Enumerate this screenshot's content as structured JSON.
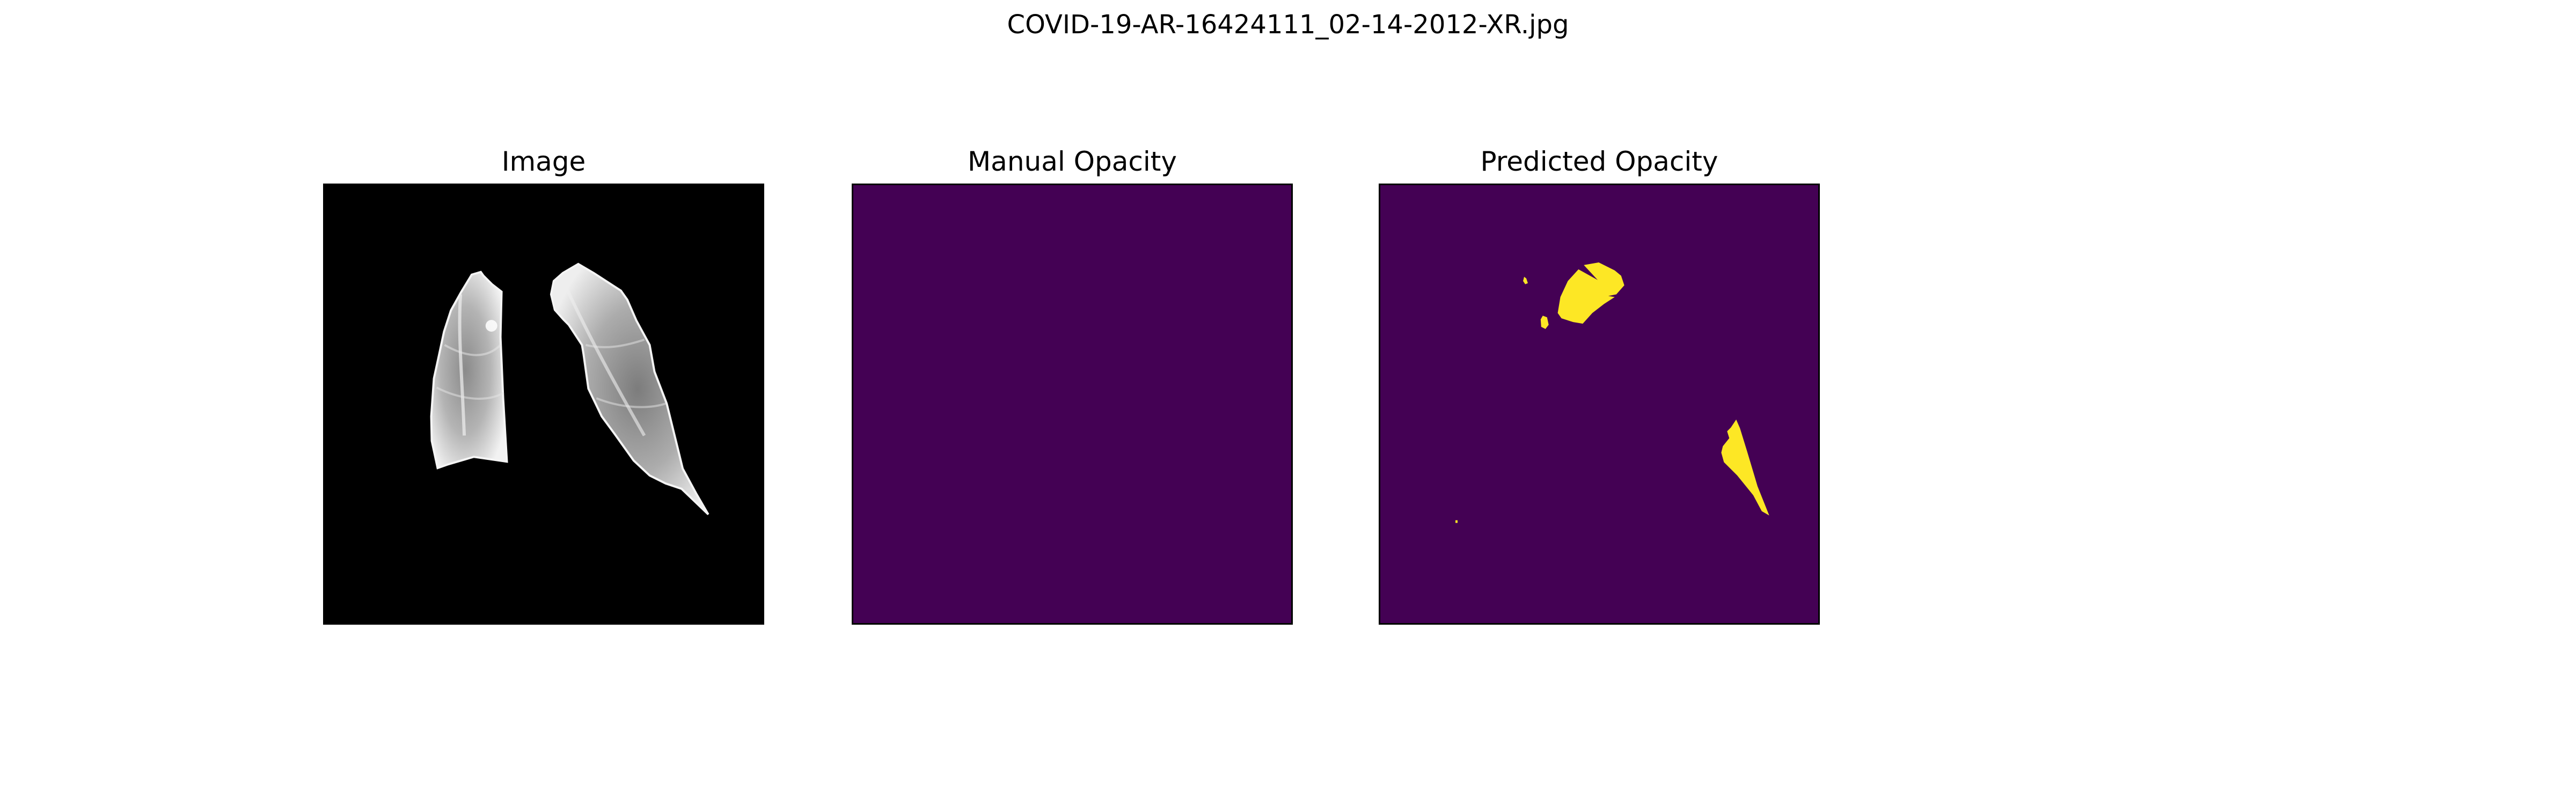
{
  "figure": {
    "suptitle": "COVID-19-AR-16424111_02-14-2012-XR.jpg"
  },
  "panels": [
    {
      "title": "Image",
      "content": "chest x-ray (lungs on black background)",
      "colors": {
        "background": "#000000",
        "tissue": "#d9d9d9"
      }
    },
    {
      "title": "Manual Opacity",
      "content": "empty mask",
      "colors": {
        "background": "#440154"
      }
    },
    {
      "title": "Predicted Opacity",
      "content": "predicted opacity mask",
      "colors": {
        "background": "#440154",
        "mask": "#fde725"
      }
    }
  ]
}
